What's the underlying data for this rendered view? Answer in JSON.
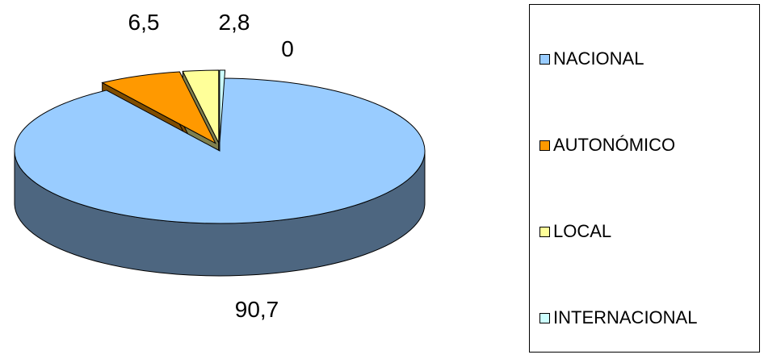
{
  "chart_data": {
    "type": "pie",
    "style": "3d-exploded",
    "title": "",
    "slices": [
      {
        "label": "NACIONAL",
        "value": 90.7,
        "display": "90,7",
        "color": "#99CCFF",
        "side_color": "#4D6680"
      },
      {
        "label": "AUTONÓMICO",
        "value": 6.5,
        "display": "6,5",
        "color": "#FF9900",
        "side_color": "#804D00"
      },
      {
        "label": "LOCAL",
        "value": 2.8,
        "display": "2,8",
        "color": "#FFFF99",
        "side_color": "#80804D"
      },
      {
        "label": "INTERNACIONAL",
        "value": 0,
        "display": "0",
        "color": "#CCFFFF",
        "side_color": "#668080"
      }
    ],
    "legend_position": "right"
  }
}
